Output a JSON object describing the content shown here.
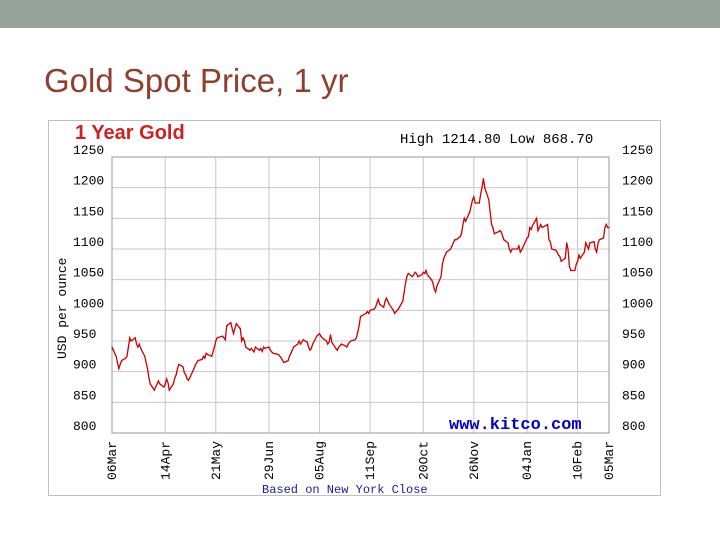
{
  "slide": {
    "title": "Gold Spot Price, 1 yr"
  },
  "colors": {
    "top_bar": "#95a39a",
    "title": "#8f3f2b",
    "chart_title": "#cc2222",
    "line": "#cc0000",
    "watermark": "#0000cc",
    "footer": "#1a1aa0",
    "grid": "#c8c8c8"
  },
  "chart_data": {
    "type": "line",
    "title": "1 Year Gold",
    "subtitle": "High 1214.80 Low 868.70",
    "ylabel": "USD per ounce",
    "xlabel": "Based on New York Close",
    "watermark": "www.kitco.com",
    "ylim": [
      800,
      1250
    ],
    "yticks": [
      "800",
      "850",
      "900",
      "950",
      "1000",
      "1050",
      "1100",
      "1150",
      "1200",
      "1250"
    ],
    "xticks": [
      "06Mar",
      "14Apr",
      "21May",
      "29Jun",
      "05Aug",
      "11Sep",
      "20Oct",
      "26Nov",
      "04Jan",
      "10Feb",
      "05Mar"
    ],
    "grid": true,
    "series": [
      {
        "values": [
          {
            "x": "06Mar",
            "y": 940
          },
          {
            "x": "07Mar",
            "y": 935
          },
          {
            "x": "09Mar",
            "y": 925
          },
          {
            "x": "10Mar",
            "y": 915
          },
          {
            "x": "11Mar",
            "y": 905
          },
          {
            "x": "12Mar",
            "y": 912
          },
          {
            "x": "13Mar",
            "y": 918
          },
          {
            "x": "16Mar",
            "y": 922
          },
          {
            "x": "17Mar",
            "y": 925
          },
          {
            "x": "18Mar",
            "y": 940
          },
          {
            "x": "19Mar",
            "y": 955
          },
          {
            "x": "20Mar",
            "y": 950
          },
          {
            "x": "23Mar",
            "y": 955
          },
          {
            "x": "24Mar",
            "y": 945
          },
          {
            "x": "25Mar",
            "y": 940
          },
          {
            "x": "26Mar",
            "y": 945
          },
          {
            "x": "27Mar",
            "y": 938
          },
          {
            "x": "30Mar",
            "y": 925
          },
          {
            "x": "31Mar",
            "y": 915
          },
          {
            "x": "01Apr",
            "y": 905
          },
          {
            "x": "02Apr",
            "y": 890
          },
          {
            "x": "03Apr",
            "y": 880
          },
          {
            "x": "06Apr",
            "y": 870
          },
          {
            "x": "07Apr",
            "y": 875
          },
          {
            "x": "08Apr",
            "y": 880
          },
          {
            "x": "09Apr",
            "y": 885
          },
          {
            "x": "10Apr",
            "y": 880
          },
          {
            "x": "13Apr",
            "y": 875
          },
          {
            "x": "14Apr",
            "y": 880
          },
          {
            "x": "15Apr",
            "y": 888
          },
          {
            "x": "16Apr",
            "y": 882
          },
          {
            "x": "17Apr",
            "y": 870
          },
          {
            "x": "20Apr",
            "y": 880
          },
          {
            "x": "21Apr",
            "y": 890
          },
          {
            "x": "22Apr",
            "y": 895
          },
          {
            "x": "23Apr",
            "y": 905
          },
          {
            "x": "24Apr",
            "y": 912
          },
          {
            "x": "27Apr",
            "y": 908
          },
          {
            "x": "28Apr",
            "y": 898
          },
          {
            "x": "29Apr",
            "y": 895
          },
          {
            "x": "30Apr",
            "y": 888
          },
          {
            "x": "01May",
            "y": 886
          },
          {
            "x": "04May",
            "y": 900
          },
          {
            "x": "05May",
            "y": 905
          },
          {
            "x": "06May",
            "y": 910
          },
          {
            "x": "07May",
            "y": 915
          },
          {
            "x": "08May",
            "y": 918
          },
          {
            "x": "11May",
            "y": 920
          },
          {
            "x": "12May",
            "y": 925
          },
          {
            "x": "13May",
            "y": 922
          },
          {
            "x": "14May",
            "y": 930
          },
          {
            "x": "15May",
            "y": 928
          },
          {
            "x": "18May",
            "y": 925
          },
          {
            "x": "19May",
            "y": 932
          },
          {
            "x": "20May",
            "y": 940
          },
          {
            "x": "21May",
            "y": 950
          },
          {
            "x": "22May",
            "y": 955
          },
          {
            "x": "26May",
            "y": 958
          },
          {
            "x": "27May",
            "y": 955
          },
          {
            "x": "28May",
            "y": 952
          },
          {
            "x": "29May",
            "y": 975
          },
          {
            "x": "01Jun",
            "y": 980
          },
          {
            "x": "02Jun",
            "y": 970
          },
          {
            "x": "03Jun",
            "y": 962
          },
          {
            "x": "04Jun",
            "y": 970
          },
          {
            "x": "05Jun",
            "y": 978
          },
          {
            "x": "08Jun",
            "y": 970
          },
          {
            "x": "09Jun",
            "y": 950
          },
          {
            "x": "10Jun",
            "y": 955
          },
          {
            "x": "11Jun",
            "y": 950
          },
          {
            "x": "12Jun",
            "y": 940
          },
          {
            "x": "15Jun",
            "y": 935
          },
          {
            "x": "16Jun",
            "y": 938
          },
          {
            "x": "17Jun",
            "y": 935
          },
          {
            "x": "18Jun",
            "y": 932
          },
          {
            "x": "19Jun",
            "y": 940
          },
          {
            "x": "22Jun",
            "y": 935
          },
          {
            "x": "23Jun",
            "y": 938
          },
          {
            "x": "24Jun",
            "y": 933
          },
          {
            "x": "25Jun",
            "y": 940
          },
          {
            "x": "26Jun",
            "y": 938
          },
          {
            "x": "29Jun",
            "y": 940
          },
          {
            "x": "30Jun",
            "y": 935
          },
          {
            "x": "01Jul",
            "y": 932
          },
          {
            "x": "02Jul",
            "y": 930
          },
          {
            "x": "06Jul",
            "y": 928
          },
          {
            "x": "07Jul",
            "y": 925
          },
          {
            "x": "08Jul",
            "y": 922
          },
          {
            "x": "09Jul",
            "y": 918
          },
          {
            "x": "10Jul",
            "y": 915
          },
          {
            "x": "13Jul",
            "y": 918
          },
          {
            "x": "14Jul",
            "y": 925
          },
          {
            "x": "15Jul",
            "y": 930
          },
          {
            "x": "16Jul",
            "y": 935
          },
          {
            "x": "17Jul",
            "y": 940
          },
          {
            "x": "20Jul",
            "y": 945
          },
          {
            "x": "21Jul",
            "y": 950
          },
          {
            "x": "22Jul",
            "y": 945
          },
          {
            "x": "23Jul",
            "y": 948
          },
          {
            "x": "24Jul",
            "y": 952
          },
          {
            "x": "27Jul",
            "y": 948
          },
          {
            "x": "28Jul",
            "y": 940
          },
          {
            "x": "29Jul",
            "y": 935
          },
          {
            "x": "30Jul",
            "y": 938
          },
          {
            "x": "31Jul",
            "y": 945
          },
          {
            "x": "03Aug",
            "y": 958
          },
          {
            "x": "04Aug",
            "y": 960
          },
          {
            "x": "05Aug",
            "y": 962
          },
          {
            "x": "06Aug",
            "y": 958
          },
          {
            "x": "07Aug",
            "y": 955
          },
          {
            "x": "10Aug",
            "y": 950
          },
          {
            "x": "11Aug",
            "y": 945
          },
          {
            "x": "12Aug",
            "y": 948
          },
          {
            "x": "13Aug",
            "y": 960
          },
          {
            "x": "14Aug",
            "y": 948
          },
          {
            "x": "17Aug",
            "y": 938
          },
          {
            "x": "18Aug",
            "y": 935
          },
          {
            "x": "19Aug",
            "y": 940
          },
          {
            "x": "20Aug",
            "y": 942
          },
          {
            "x": "21Aug",
            "y": 945
          },
          {
            "x": "24Aug",
            "y": 942
          },
          {
            "x": "25Aug",
            "y": 940
          },
          {
            "x": "26Aug",
            "y": 945
          },
          {
            "x": "27Aug",
            "y": 948
          },
          {
            "x": "28Aug",
            "y": 950
          },
          {
            "x": "31Aug",
            "y": 952
          },
          {
            "x": "01Sep",
            "y": 955
          },
          {
            "x": "02Sep",
            "y": 965
          },
          {
            "x": "03Sep",
            "y": 975
          },
          {
            "x": "04Sep",
            "y": 990
          },
          {
            "x": "08Sep",
            "y": 995
          },
          {
            "x": "09Sep",
            "y": 998
          },
          {
            "x": "10Sep",
            "y": 995
          },
          {
            "x": "11Sep",
            "y": 1000
          },
          {
            "x": "14Sep",
            "y": 1002
          },
          {
            "x": "15Sep",
            "y": 1005
          },
          {
            "x": "16Sep",
            "y": 1012
          },
          {
            "x": "17Sep",
            "y": 1018
          },
          {
            "x": "18Sep",
            "y": 1010
          },
          {
            "x": "21Sep",
            "y": 1005
          },
          {
            "x": "22Sep",
            "y": 1015
          },
          {
            "x": "23Sep",
            "y": 1020
          },
          {
            "x": "24Sep",
            "y": 1015
          },
          {
            "x": "25Sep",
            "y": 1010
          },
          {
            "x": "28Sep",
            "y": 1000
          },
          {
            "x": "29Sep",
            "y": 995
          },
          {
            "x": "30Sep",
            "y": 998
          },
          {
            "x": "01Oct",
            "y": 1000
          },
          {
            "x": "02Oct",
            "y": 1003
          },
          {
            "x": "05Oct",
            "y": 1015
          },
          {
            "x": "06Oct",
            "y": 1030
          },
          {
            "x": "07Oct",
            "y": 1045
          },
          {
            "x": "08Oct",
            "y": 1055
          },
          {
            "x": "09Oct",
            "y": 1060
          },
          {
            "x": "12Oct",
            "y": 1055
          },
          {
            "x": "13Oct",
            "y": 1058
          },
          {
            "x": "14Oct",
            "y": 1062
          },
          {
            "x": "15Oct",
            "y": 1060
          },
          {
            "x": "16Oct",
            "y": 1055
          },
          {
            "x": "19Oct",
            "y": 1058
          },
          {
            "x": "20Oct",
            "y": 1062
          },
          {
            "x": "21Oct",
            "y": 1060
          },
          {
            "x": "22Oct",
            "y": 1065
          },
          {
            "x": "23Oct",
            "y": 1058
          },
          {
            "x": "26Oct",
            "y": 1050
          },
          {
            "x": "27Oct",
            "y": 1045
          },
          {
            "x": "28Oct",
            "y": 1035
          },
          {
            "x": "29Oct",
            "y": 1030
          },
          {
            "x": "30Oct",
            "y": 1040
          },
          {
            "x": "02Nov",
            "y": 1055
          },
          {
            "x": "03Nov",
            "y": 1075
          },
          {
            "x": "04Nov",
            "y": 1085
          },
          {
            "x": "05Nov",
            "y": 1090
          },
          {
            "x": "06Nov",
            "y": 1095
          },
          {
            "x": "09Nov",
            "y": 1100
          },
          {
            "x": "10Nov",
            "y": 1105
          },
          {
            "x": "11Nov",
            "y": 1110
          },
          {
            "x": "12Nov",
            "y": 1115
          },
          {
            "x": "13Nov",
            "y": 1115
          },
          {
            "x": "16Nov",
            "y": 1120
          },
          {
            "x": "17Nov",
            "y": 1125
          },
          {
            "x": "18Nov",
            "y": 1140
          },
          {
            "x": "19Nov",
            "y": 1150
          },
          {
            "x": "20Nov",
            "y": 1145
          },
          {
            "x": "23Nov",
            "y": 1160
          },
          {
            "x": "24Nov",
            "y": 1170
          },
          {
            "x": "25Nov",
            "y": 1180
          },
          {
            "x": "26Nov",
            "y": 1185
          },
          {
            "x": "27Nov",
            "y": 1175
          },
          {
            "x": "30Nov",
            "y": 1175
          },
          {
            "x": "01Dec",
            "y": 1190
          },
          {
            "x": "02Dec",
            "y": 1200
          },
          {
            "x": "03Dec",
            "y": 1214.8
          },
          {
            "x": "04Dec",
            "y": 1200
          },
          {
            "x": "07Dec",
            "y": 1180
          },
          {
            "x": "08Dec",
            "y": 1160
          },
          {
            "x": "09Dec",
            "y": 1140
          },
          {
            "x": "10Dec",
            "y": 1135
          },
          {
            "x": "11Dec",
            "y": 1125
          },
          {
            "x": "14Dec",
            "y": 1128
          },
          {
            "x": "15Dec",
            "y": 1130
          },
          {
            "x": "16Dec",
            "y": 1128
          },
          {
            "x": "17Dec",
            "y": 1122
          },
          {
            "x": "18Dec",
            "y": 1115
          },
          {
            "x": "21Dec",
            "y": 1110
          },
          {
            "x": "22Dec",
            "y": 1100
          },
          {
            "x": "23Dec",
            "y": 1095
          },
          {
            "x": "24Dec",
            "y": 1100
          },
          {
            "x": "28Dec",
            "y": 1100
          },
          {
            "x": "29Dec",
            "y": 1105
          },
          {
            "x": "30Dec",
            "y": 1095
          },
          {
            "x": "31Dec",
            "y": 1098
          },
          {
            "x": "04Jan",
            "y": 1118
          },
          {
            "x": "05Jan",
            "y": 1120
          },
          {
            "x": "06Jan",
            "y": 1135
          },
          {
            "x": "07Jan",
            "y": 1132
          },
          {
            "x": "08Jan",
            "y": 1138
          },
          {
            "x": "11Jan",
            "y": 1150
          },
          {
            "x": "12Jan",
            "y": 1130
          },
          {
            "x": "13Jan",
            "y": 1135
          },
          {
            "x": "14Jan",
            "y": 1140
          },
          {
            "x": "15Jan",
            "y": 1135
          },
          {
            "x": "19Jan",
            "y": 1140
          },
          {
            "x": "20Jan",
            "y": 1115
          },
          {
            "x": "21Jan",
            "y": 1112
          },
          {
            "x": "22Jan",
            "y": 1100
          },
          {
            "x": "25Jan",
            "y": 1098
          },
          {
            "x": "26Jan",
            "y": 1095
          },
          {
            "x": "27Jan",
            "y": 1090
          },
          {
            "x": "28Jan",
            "y": 1088
          },
          {
            "x": "29Jan",
            "y": 1080
          },
          {
            "x": "01Feb",
            "y": 1085
          },
          {
            "x": "02Feb",
            "y": 1110
          },
          {
            "x": "03Feb",
            "y": 1100
          },
          {
            "x": "04Feb",
            "y": 1072
          },
          {
            "x": "05Feb",
            "y": 1065
          },
          {
            "x": "08Feb",
            "y": 1065
          },
          {
            "x": "09Feb",
            "y": 1075
          },
          {
            "x": "10Feb",
            "y": 1080
          },
          {
            "x": "11Feb",
            "y": 1090
          },
          {
            "x": "12Feb",
            "y": 1085
          },
          {
            "x": "15Feb",
            "y": 1095
          },
          {
            "x": "16Feb",
            "y": 1110
          },
          {
            "x": "17Feb",
            "y": 1105
          },
          {
            "x": "18Feb",
            "y": 1100
          },
          {
            "x": "19Feb",
            "y": 1110
          },
          {
            "x": "22Feb",
            "y": 1112
          },
          {
            "x": "23Feb",
            "y": 1100
          },
          {
            "x": "24Feb",
            "y": 1095
          },
          {
            "x": "25Feb",
            "y": 1110
          },
          {
            "x": "26Feb",
            "y": 1115
          },
          {
            "x": "01Mar",
            "y": 1118
          },
          {
            "x": "02Mar",
            "y": 1135
          },
          {
            "x": "03Mar",
            "y": 1140
          },
          {
            "x": "04Mar",
            "y": 1135
          },
          {
            "x": "05Mar",
            "y": 1135
          }
        ]
      }
    ]
  }
}
